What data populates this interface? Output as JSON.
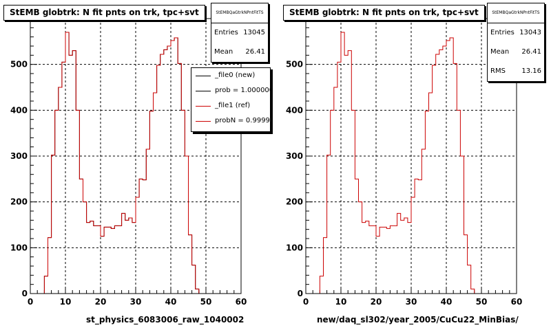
{
  "chart_data": [
    {
      "type": "histogram",
      "title": "StEMB globtrk: N fit pnts on trk, tpc+svt",
      "xlabel": "st_physics_6083006_raw_1040002",
      "xlim": [
        0,
        60
      ],
      "ylim": [
        0,
        600
      ],
      "xticks": [
        "0",
        "10",
        "20",
        "30",
        "40",
        "50",
        "60"
      ],
      "yticks": [
        "0",
        "100",
        "200",
        "300",
        "400",
        "500"
      ],
      "grid": true,
      "stats": {
        "name": "StEMBQaGtrkNPntFitTS",
        "rows": [
          {
            "label": "Entries",
            "value": "13045"
          },
          {
            "label": "Mean",
            "value": "26.41"
          }
        ]
      },
      "legend": [
        {
          "label": "_file0 (new)",
          "color": "#000000"
        },
        {
          "label": "prob = 1.000000",
          "color": "#000000"
        },
        {
          "label": "_file1 (ref)",
          "color": "#cc0000"
        },
        {
          "label": "probN = 0.999995",
          "color": "#cc0000"
        }
      ],
      "series": [
        {
          "name": "_file0 (new)",
          "color": "#000000",
          "bin_edges": [
            0,
            1,
            2,
            3,
            4,
            5,
            6,
            7,
            8,
            9,
            10,
            11,
            12,
            13,
            14,
            15,
            16,
            17,
            18,
            19,
            20,
            21,
            22,
            23,
            24,
            25,
            26,
            27,
            28,
            29,
            30,
            31,
            32,
            33,
            34,
            35,
            36,
            37,
            38,
            39,
            40,
            41,
            42,
            43,
            44,
            45,
            46,
            47,
            48,
            49,
            50
          ],
          "values": [
            0,
            0,
            0,
            0,
            38,
            122,
            302,
            400,
            450,
            505,
            570,
            520,
            530,
            400,
            250,
            200,
            155,
            158,
            148,
            148,
            125,
            145,
            145,
            142,
            148,
            148,
            175,
            160,
            165,
            155,
            210,
            250,
            248,
            315,
            398,
            438,
            498,
            522,
            532,
            540,
            552,
            558,
            502,
            400,
            300,
            128,
            62,
            10,
            0,
            0
          ]
        },
        {
          "name": "_file1 (ref)",
          "color": "#cc0000",
          "bin_edges": [
            0,
            1,
            2,
            3,
            4,
            5,
            6,
            7,
            8,
            9,
            10,
            11,
            12,
            13,
            14,
            15,
            16,
            17,
            18,
            19,
            20,
            21,
            22,
            23,
            24,
            25,
            26,
            27,
            28,
            29,
            30,
            31,
            32,
            33,
            34,
            35,
            36,
            37,
            38,
            39,
            40,
            41,
            42,
            43,
            44,
            45,
            46,
            47,
            48,
            49,
            50
          ],
          "values": [
            0,
            0,
            0,
            0,
            38,
            122,
            302,
            400,
            450,
            505,
            570,
            520,
            530,
            400,
            250,
            200,
            155,
            158,
            148,
            148,
            125,
            145,
            145,
            142,
            148,
            148,
            175,
            160,
            165,
            155,
            210,
            250,
            248,
            315,
            398,
            438,
            498,
            522,
            532,
            540,
            552,
            558,
            502,
            400,
            300,
            128,
            62,
            10,
            0,
            0
          ]
        }
      ]
    },
    {
      "type": "histogram",
      "title": "StEMB globtrk: N fit pnts on trk, tpc+svt",
      "xlabel": "new/daq_sl302/year_2005/CuCu22_MinBias/",
      "xlim": [
        0,
        60
      ],
      "ylim": [
        0,
        600
      ],
      "xticks": [
        "0",
        "10",
        "20",
        "30",
        "40",
        "50",
        "60"
      ],
      "yticks": [
        "0",
        "100",
        "200",
        "300",
        "400",
        "500"
      ],
      "grid": true,
      "stats": {
        "name": "StEMBQaGtrkNPntFitTS",
        "rows": [
          {
            "label": "Entries",
            "value": "13043"
          },
          {
            "label": "Mean",
            "value": "26.41"
          },
          {
            "label": "RMS",
            "value": "13.16"
          }
        ]
      },
      "series": [
        {
          "name": "",
          "color": "#cc0000",
          "bin_edges": [
            0,
            1,
            2,
            3,
            4,
            5,
            6,
            7,
            8,
            9,
            10,
            11,
            12,
            13,
            14,
            15,
            16,
            17,
            18,
            19,
            20,
            21,
            22,
            23,
            24,
            25,
            26,
            27,
            28,
            29,
            30,
            31,
            32,
            33,
            34,
            35,
            36,
            37,
            38,
            39,
            40,
            41,
            42,
            43,
            44,
            45,
            46,
            47,
            48,
            49,
            50
          ],
          "values": [
            0,
            0,
            0,
            0,
            38,
            122,
            302,
            400,
            450,
            505,
            570,
            520,
            530,
            400,
            250,
            200,
            155,
            158,
            148,
            148,
            125,
            145,
            145,
            142,
            148,
            148,
            175,
            160,
            165,
            155,
            210,
            250,
            248,
            315,
            398,
            438,
            498,
            522,
            532,
            540,
            552,
            558,
            502,
            400,
            300,
            128,
            62,
            10,
            0,
            0
          ]
        }
      ]
    }
  ]
}
